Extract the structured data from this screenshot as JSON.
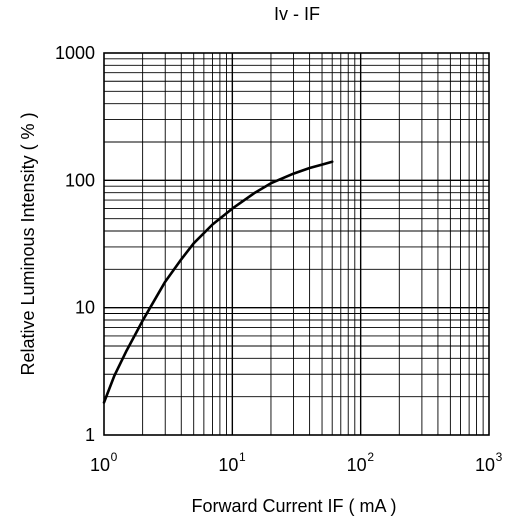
{
  "chart_data": {
    "type": "line",
    "title": "Iv - IF",
    "xlabel": "Forward Current  IF ( mA )",
    "ylabel": "Relative Luminous Intensity ( % )",
    "x_scale": "log",
    "y_scale": "log",
    "xlim": [
      1,
      1000
    ],
    "ylim": [
      1,
      1000
    ],
    "x_ticks": [
      {
        "base": "10",
        "exp": "0"
      },
      {
        "base": "10",
        "exp": "1"
      },
      {
        "base": "10",
        "exp": "2"
      },
      {
        "base": "10",
        "exp": "3"
      }
    ],
    "y_ticks": [
      "1",
      "10",
      "100",
      "1000"
    ],
    "grid": true,
    "series": [
      {
        "x": [
          1.0,
          1.2,
          1.5,
          2.0,
          3.0,
          4.0,
          5.0,
          7.0,
          10,
          15,
          20,
          30,
          40,
          50,
          60
        ],
        "y": [
          1.8,
          2.9,
          4.6,
          7.9,
          16,
          24,
          32,
          45,
          60,
          80,
          95,
          113,
          125,
          133,
          140
        ]
      }
    ],
    "colors": {
      "line": "#000000",
      "grid": "#000000"
    }
  }
}
